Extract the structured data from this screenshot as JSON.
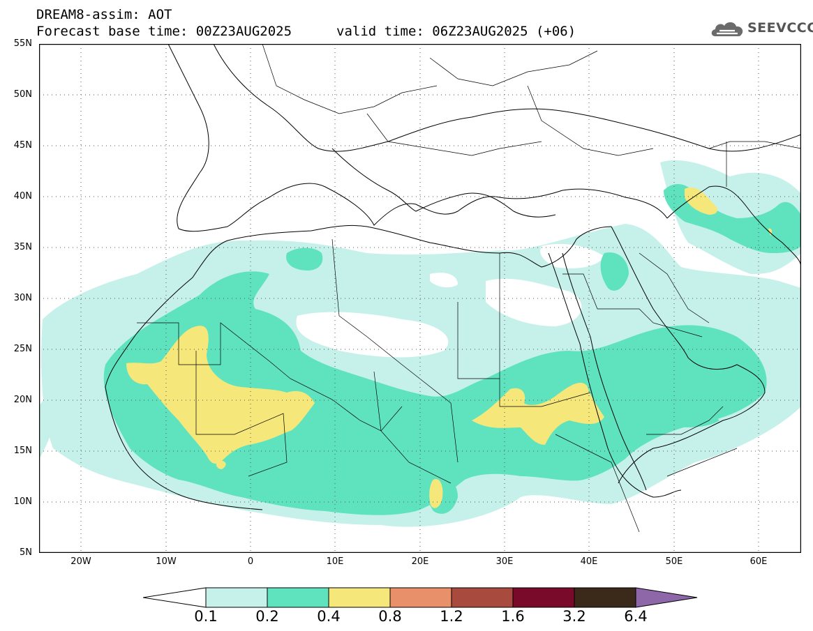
{
  "header": {
    "title_line1": "DREAM8-assim: AOT",
    "title_line2": "Forecast base time: 00Z23AUG2025",
    "valid_time": "valid time: 06Z23AUG2025 (+06)",
    "logo_text": "SEEVCCC",
    "logo_icon": "cloud-icon"
  },
  "map": {
    "variable": "AOT",
    "extent": {
      "lon": [
        -25,
        65
      ],
      "lat": [
        5,
        55
      ]
    },
    "lat_ticks": [
      "55N",
      "50N",
      "45N",
      "40N",
      "35N",
      "30N",
      "25N",
      "20N",
      "15N",
      "10N",
      "5N"
    ],
    "lon_ticks": [
      "20W",
      "10W",
      "0",
      "10E",
      "20E",
      "30E",
      "40E",
      "50E",
      "60E"
    ],
    "grid": true
  },
  "legend": {
    "levels": [
      "0.1",
      "0.2",
      "0.4",
      "0.8",
      "1.2",
      "1.6",
      "3.2",
      "6.4"
    ],
    "colors": [
      "#ffffff",
      "#c6f1ea",
      "#5fe3bf",
      "#f5e77a",
      "#e8906a",
      "#a84a3e",
      "#7a0a2a",
      "#3b2a1a",
      "#8e67a8"
    ]
  }
}
